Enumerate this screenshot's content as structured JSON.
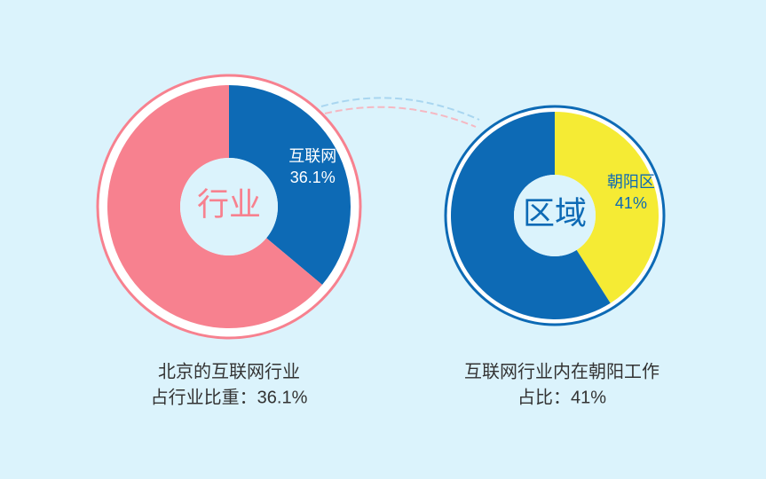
{
  "chart_data": [
    {
      "type": "pie",
      "center_label": "行业",
      "categories": [
        "互联网",
        null
      ],
      "values": [
        36.1,
        63.9
      ],
      "value_labels": [
        "36.1%",
        null
      ],
      "colors": [
        "#0d6ab5",
        "#f7818f"
      ],
      "caption": [
        "北京的互联网行业",
        "占行业比重：36.1%"
      ]
    },
    {
      "type": "pie",
      "center_label": "区域",
      "categories": [
        "朝阳区",
        null
      ],
      "values": [
        41,
        59
      ],
      "value_labels": [
        "41%",
        null
      ],
      "colors": [
        "#f5eb34",
        "#0d6ab5"
      ],
      "caption": [
        "互联网行业内在朝阳工作",
        "占比：41%"
      ]
    }
  ]
}
